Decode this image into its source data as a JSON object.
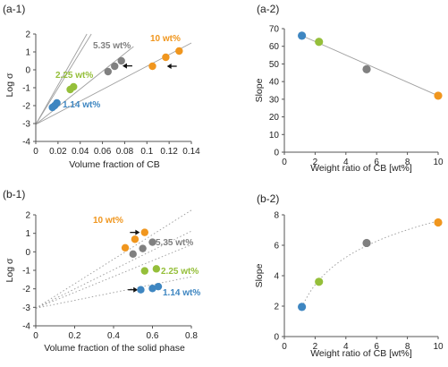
{
  "colors": {
    "blue": "#3E86C1",
    "green": "#95BF3A",
    "gray": "#808080",
    "orange": "#F0961E",
    "axis": "#555555",
    "fitline": "#A0A0A0",
    "dotted": "#999999",
    "text": "#222222"
  },
  "chart_data": [
    {
      "panel": "(a-1)",
      "type": "scatter",
      "xlabel": "Volume fraction of CB",
      "ylabel": "Log σ",
      "xlim": [
        0,
        0.14
      ],
      "ylim": [
        -4,
        2
      ],
      "xticks": [
        "0",
        "0.02",
        "0.04",
        "0.06",
        "0.08",
        "0.1",
        "0.12",
        "0.14"
      ],
      "yticks": [
        "-4",
        "-3",
        "-2",
        "-1",
        "0",
        "1",
        "2"
      ],
      "series": [
        {
          "name": "1.14 wt%",
          "color": "blue",
          "points": [
            [
              0.015,
              -2.1
            ],
            [
              0.017,
              -2.0
            ],
            [
              0.019,
              -1.85
            ]
          ]
        },
        {
          "name": "2.25 wt%",
          "color": "green",
          "points": [
            [
              0.031,
              -1.1
            ],
            [
              0.034,
              -0.95
            ]
          ]
        },
        {
          "name": "5.35 wt%",
          "color": "gray",
          "points": [
            [
              0.065,
              -0.1
            ],
            [
              0.071,
              0.2
            ],
            [
              0.077,
              0.5
            ]
          ]
        },
        {
          "name": "10 wt%",
          "color": "orange",
          "points": [
            [
              0.105,
              0.2
            ],
            [
              0.117,
              0.7
            ],
            [
              0.129,
              1.05
            ]
          ]
        }
      ],
      "fit_lines": [
        {
          "style": "solid",
          "from": [
            0,
            -3.05
          ],
          "to": [
            0.046,
            2
          ]
        },
        {
          "style": "solid",
          "from": [
            0,
            -3.05
          ],
          "to": [
            0.05,
            2
          ]
        },
        {
          "style": "solid",
          "from": [
            0,
            -3.05
          ],
          "to": [
            0.088,
            1.3
          ]
        },
        {
          "style": "solid",
          "from": [
            0,
            -3.05
          ],
          "to": [
            0.14,
            1.5
          ]
        }
      ],
      "arrows": [
        {
          "tip": [
            0.078,
            0.22
          ],
          "dir": "left"
        },
        {
          "tip": [
            0.118,
            0.2
          ],
          "dir": "left"
        }
      ]
    },
    {
      "panel": "(a-2)",
      "type": "scatter",
      "xlabel": "Weight ratio of CB [wt%]",
      "ylabel": "Slope",
      "xlim": [
        0,
        10
      ],
      "ylim": [
        0,
        70
      ],
      "xticks": [
        "0",
        "2",
        "4",
        "6",
        "8",
        "10"
      ],
      "yticks": [
        "0",
        "10",
        "20",
        "30",
        "40",
        "50",
        "60",
        "70"
      ],
      "points": [
        {
          "x": 1.14,
          "y": 66,
          "color": "blue"
        },
        {
          "x": 2.25,
          "y": 62.5,
          "color": "green"
        },
        {
          "x": 5.35,
          "y": 47,
          "color": "gray"
        },
        {
          "x": 10,
          "y": 32,
          "color": "orange"
        }
      ],
      "fit_lines": [
        {
          "style": "solid",
          "from": [
            1.14,
            66
          ],
          "to": [
            10,
            32
          ]
        }
      ]
    },
    {
      "panel": "(b-1)",
      "type": "scatter",
      "xlabel": "Volume fraction of the solid phase",
      "ylabel": "Log σ",
      "xlim": [
        0,
        0.8
      ],
      "ylim": [
        -4,
        2
      ],
      "xticks": [
        "0",
        "0.2",
        "0.4",
        "0.6",
        "0.8"
      ],
      "yticks": [
        "-4",
        "-3",
        "-2",
        "-1",
        "0",
        "1",
        "2"
      ],
      "series": [
        {
          "name": "1.14 wt%",
          "color": "blue",
          "points": [
            [
              0.54,
              -2.05
            ],
            [
              0.6,
              -1.98
            ],
            [
              0.63,
              -1.88
            ]
          ]
        },
        {
          "name": "2.25 wt%",
          "color": "green",
          "points": [
            [
              0.56,
              -1.03
            ],
            [
              0.62,
              -0.92
            ]
          ]
        },
        {
          "name": "5.35 wt%",
          "color": "gray",
          "points": [
            [
              0.5,
              -0.12
            ],
            [
              0.55,
              0.18
            ],
            [
              0.6,
              0.52
            ]
          ]
        },
        {
          "name": "10 wt%",
          "color": "orange",
          "points": [
            [
              0.46,
              0.22
            ],
            [
              0.51,
              0.68
            ],
            [
              0.56,
              1.05
            ]
          ]
        }
      ],
      "fit_lines": [
        {
          "style": "dotted",
          "from": [
            0,
            -3.05
          ],
          "to": [
            0.8,
            2.25
          ]
        },
        {
          "style": "dotted",
          "from": [
            0,
            -3.05
          ],
          "to": [
            0.8,
            1.12
          ]
        },
        {
          "style": "dotted",
          "from": [
            0,
            -3.05
          ],
          "to": [
            0.8,
            0.38
          ]
        },
        {
          "style": "dotted",
          "from": [
            0,
            -3.05
          ],
          "to": [
            0.8,
            -1.35
          ]
        }
      ],
      "arrows": [
        {
          "tip": [
            0.535,
            1.05
          ],
          "dir": "right"
        },
        {
          "tip": [
            0.525,
            -2.05
          ],
          "dir": "right"
        }
      ]
    },
    {
      "panel": "(b-2)",
      "type": "scatter",
      "xlabel": "Weight ratio of CB [wt%]",
      "ylabel": "Slope",
      "xlim": [
        0,
        10
      ],
      "ylim": [
        0,
        8
      ],
      "xticks": [
        "0",
        "2",
        "4",
        "6",
        "8",
        "10"
      ],
      "yticks": [
        "0",
        "2",
        "4",
        "6",
        "8"
      ],
      "points": [
        {
          "x": 1.14,
          "y": 1.95,
          "color": "blue"
        },
        {
          "x": 2.25,
          "y": 3.6,
          "color": "green"
        },
        {
          "x": 5.35,
          "y": 6.15,
          "color": "gray"
        },
        {
          "x": 10,
          "y": 7.5,
          "color": "orange"
        }
      ],
      "fit_curve": {
        "style": "dotted",
        "model": "logarithmic",
        "from_x": 1.14,
        "to_x": 10
      }
    }
  ]
}
